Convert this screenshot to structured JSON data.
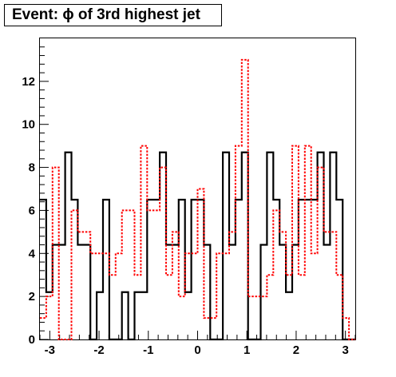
{
  "chart_data": {
    "type": "line",
    "title": "Event: ϕ of 3rd highest jet",
    "xlabel": "",
    "ylabel": "",
    "xlim": [
      -3.2,
      3.2
    ],
    "ylim": [
      0,
      14
    ],
    "grid": false,
    "x_ticks": [
      -3,
      -2,
      -1,
      0,
      1,
      2,
      3
    ],
    "x_tick_labels": [
      "-3",
      "-2",
      "-1",
      "0",
      "1",
      "2",
      "3"
    ],
    "y_ticks": [
      0,
      2,
      4,
      6,
      8,
      10,
      12
    ],
    "y_tick_labels": [
      "0",
      "2",
      "4",
      "6",
      "8",
      "10",
      "12"
    ],
    "bin_edges": [
      -3.2,
      -3.072,
      -2.944,
      -2.816,
      -2.688,
      -2.56,
      -2.432,
      -2.304,
      -2.176,
      -2.048,
      -1.92,
      -1.792,
      -1.664,
      -1.536,
      -1.408,
      -1.28,
      -1.152,
      -1.024,
      -0.896,
      -0.768,
      -0.64,
      -0.512,
      -0.384,
      -0.256,
      -0.128,
      0.0,
      0.128,
      0.256,
      0.384,
      0.512,
      0.64,
      0.768,
      0.896,
      1.024,
      1.152,
      1.28,
      1.408,
      1.536,
      1.664,
      1.792,
      1.92,
      2.048,
      2.176,
      2.304,
      2.432,
      2.56,
      2.688,
      2.816,
      2.944,
      3.072,
      3.2
    ],
    "series": [
      {
        "color": "#000000",
        "style": "solid",
        "values": [
          6.5,
          2.2,
          4.4,
          4.4,
          8.7,
          6.5,
          4.4,
          4.4,
          0,
          2.2,
          6.5,
          0,
          0,
          2.2,
          0,
          2.2,
          2.2,
          6.5,
          6.5,
          8.7,
          4.4,
          4.4,
          6.5,
          2.2,
          6.5,
          6.5,
          4.4,
          0,
          0,
          8.7,
          4.4,
          6.5,
          8.7,
          0,
          0,
          4.4,
          8.7,
          6.5,
          4.4,
          2.2,
          4.4,
          6.5,
          6.5,
          6.5,
          8.7,
          4.4,
          8.7,
          6.5,
          0,
          0
        ]
      },
      {
        "color": "#ff0000",
        "style": "dashed",
        "values": [
          1,
          2,
          8,
          0,
          0,
          6,
          5,
          5,
          4,
          4,
          4,
          3,
          4,
          6,
          6,
          3,
          9,
          6,
          6,
          8,
          3,
          5,
          2,
          4,
          4,
          7,
          1,
          1,
          4,
          4,
          5,
          9,
          13,
          2,
          2,
          2,
          3,
          6,
          5,
          3,
          9,
          3,
          9,
          4,
          8,
          5,
          5,
          3,
          1,
          0
        ]
      }
    ]
  }
}
